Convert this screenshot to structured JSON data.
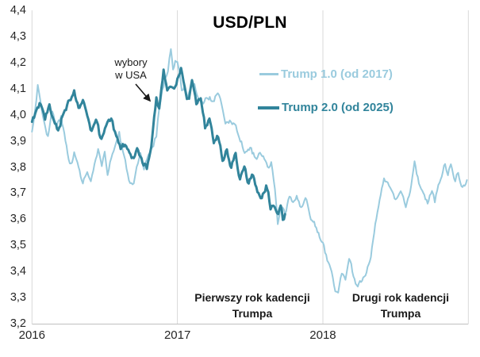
{
  "title": "USD/PLN",
  "colors": {
    "background": "#FFFFFF",
    "gridline": "#D9D9D9",
    "axis_line": "#BFBFBF",
    "text": "#262626",
    "arrow": "#1A1A1A",
    "trump1_line": "#9ACBDE",
    "trump2_line": "#31849B"
  },
  "annotations": {
    "election": {
      "line1": "wybory",
      "line2": "w USA"
    },
    "first_term": {
      "line1": "Pierwszy rok kadencji",
      "line2": "Trumpa"
    },
    "second_term": {
      "line1": "Drugi rok kadencji",
      "line2": "Trumpa"
    }
  },
  "chart_data": {
    "type": "line",
    "title": "USD/PLN",
    "grid": "vertical-only",
    "legend_position": "top-right-inside",
    "x_axis": {
      "min": 2016,
      "max": 2019,
      "tick_labels": [
        "2016",
        "2017",
        "2018"
      ],
      "tick_years": [
        2016,
        2017,
        2018
      ],
      "gridline_years": [
        2016,
        2017,
        2018,
        2019
      ]
    },
    "y_axis": {
      "min": 3.2,
      "max": 4.4,
      "step": 0.1,
      "tick_labels": [
        "3,2",
        "3,3",
        "3,4",
        "3,5",
        "3,6",
        "3,7",
        "3,8",
        "3,9",
        "4,0",
        "4,1",
        "4,2",
        "4,3",
        "4,4"
      ]
    },
    "series": [
      {
        "id": "trump-1",
        "name": "Trump 1.0 (od 2017)",
        "color": "#9ACBDE",
        "stroke_width": 2,
        "points": [
          [
            2016.0,
            3.93
          ],
          [
            2016.02,
            4.02
          ],
          [
            2016.04,
            4.12
          ],
          [
            2016.06,
            4.05
          ],
          [
            2016.085,
            3.98
          ],
          [
            2016.11,
            3.93
          ],
          [
            2016.14,
            4.01
          ],
          [
            2016.17,
            3.95
          ],
          [
            2016.2,
            3.99
          ],
          [
            2016.23,
            3.89
          ],
          [
            2016.26,
            3.81
          ],
          [
            2016.29,
            3.86
          ],
          [
            2016.32,
            3.79
          ],
          [
            2016.35,
            3.74
          ],
          [
            2016.38,
            3.78
          ],
          [
            2016.405,
            3.73
          ],
          [
            2016.43,
            3.8
          ],
          [
            2016.455,
            3.85
          ],
          [
            2016.48,
            3.78
          ],
          [
            2016.5,
            3.83
          ],
          [
            2016.52,
            3.77
          ],
          [
            2016.545,
            3.83
          ],
          [
            2016.57,
            3.88
          ],
          [
            2016.6,
            3.93
          ],
          [
            2016.625,
            3.85
          ],
          [
            2016.65,
            3.79
          ],
          [
            2016.675,
            3.74
          ],
          [
            2016.7,
            3.72
          ],
          [
            2016.72,
            3.77
          ],
          [
            2016.745,
            3.82
          ],
          [
            2016.77,
            3.77
          ],
          [
            2016.79,
            3.81
          ],
          [
            2016.81,
            3.85
          ],
          [
            2016.835,
            3.88
          ],
          [
            2016.855,
            3.92
          ],
          [
            2016.875,
            4.03
          ],
          [
            2016.895,
            4.09
          ],
          [
            2016.915,
            4.14
          ],
          [
            2016.935,
            4.18
          ],
          [
            2016.955,
            4.25
          ],
          [
            2016.97,
            4.19
          ],
          [
            2016.985,
            4.22
          ],
          [
            2017.0,
            4.2
          ],
          [
            2017.015,
            4.15
          ],
          [
            2017.03,
            4.1
          ],
          [
            2017.05,
            4.12
          ],
          [
            2017.07,
            4.06
          ],
          [
            2017.09,
            4.1
          ],
          [
            2017.11,
            4.12
          ],
          [
            2017.14,
            4.07
          ],
          [
            2017.17,
            4.05
          ],
          [
            2017.2,
            4.07
          ],
          [
            2017.23,
            4.06
          ],
          [
            2017.26,
            4.08
          ],
          [
            2017.295,
            4.07
          ],
          [
            2017.33,
            3.99
          ],
          [
            2017.36,
            4.0
          ],
          [
            2017.385,
            3.97
          ],
          [
            2017.41,
            3.93
          ],
          [
            2017.44,
            3.9
          ],
          [
            2017.47,
            3.86
          ],
          [
            2017.5,
            3.88
          ],
          [
            2017.53,
            3.84
          ],
          [
            2017.56,
            3.86
          ],
          [
            2017.59,
            3.83
          ],
          [
            2017.62,
            3.78
          ],
          [
            2017.645,
            3.8
          ],
          [
            2017.67,
            3.72
          ],
          [
            2017.69,
            3.59
          ],
          [
            2017.715,
            3.65
          ],
          [
            2017.74,
            3.62
          ],
          [
            2017.77,
            3.68
          ],
          [
            2017.795,
            3.65
          ],
          [
            2017.82,
            3.68
          ],
          [
            2017.85,
            3.64
          ],
          [
            2017.88,
            3.66
          ],
          [
            2017.91,
            3.62
          ],
          [
            2017.94,
            3.58
          ],
          [
            2017.97,
            3.54
          ],
          [
            2018.0,
            3.5
          ],
          [
            2018.03,
            3.44
          ],
          [
            2018.06,
            3.38
          ],
          [
            2018.085,
            3.33
          ],
          [
            2018.105,
            3.32
          ],
          [
            2018.13,
            3.4
          ],
          [
            2018.155,
            3.36
          ],
          [
            2018.18,
            3.42
          ],
          [
            2018.21,
            3.37
          ],
          [
            2018.24,
            3.34
          ],
          [
            2018.27,
            3.36
          ],
          [
            2018.3,
            3.41
          ],
          [
            2018.33,
            3.46
          ],
          [
            2018.36,
            3.6
          ],
          [
            2018.39,
            3.7
          ],
          [
            2018.42,
            3.76
          ],
          [
            2018.455,
            3.71
          ],
          [
            2018.5,
            3.65
          ],
          [
            2018.535,
            3.71
          ],
          [
            2018.57,
            3.64
          ],
          [
            2018.6,
            3.72
          ],
          [
            2018.63,
            3.81
          ],
          [
            2018.66,
            3.74
          ],
          [
            2018.69,
            3.7
          ],
          [
            2018.72,
            3.66
          ],
          [
            2018.75,
            3.72
          ],
          [
            2018.77,
            3.67
          ],
          [
            2018.81,
            3.77
          ],
          [
            2018.84,
            3.83
          ],
          [
            2018.86,
            3.78
          ],
          [
            2018.88,
            3.82
          ],
          [
            2018.91,
            3.77
          ],
          [
            2018.93,
            3.79
          ],
          [
            2018.96,
            3.74
          ],
          [
            2018.99,
            3.75
          ]
        ]
      },
      {
        "id": "trump-2",
        "name": "Trump 2.0 (od 2025)",
        "color": "#31849B",
        "stroke_width": 3,
        "points": [
          [
            2016.0,
            3.98
          ],
          [
            2016.03,
            4.01
          ],
          [
            2016.06,
            4.04
          ],
          [
            2016.09,
            3.98
          ],
          [
            2016.12,
            4.03
          ],
          [
            2016.15,
            3.96
          ],
          [
            2016.18,
            3.93
          ],
          [
            2016.21,
            4.0
          ],
          [
            2016.25,
            4.05
          ],
          [
            2016.29,
            4.1
          ],
          [
            2016.32,
            4.02
          ],
          [
            2016.35,
            4.06
          ],
          [
            2016.38,
            3.99
          ],
          [
            2016.41,
            3.93
          ],
          [
            2016.44,
            3.97
          ],
          [
            2016.47,
            3.9
          ],
          [
            2016.51,
            3.94
          ],
          [
            2016.545,
            3.97
          ],
          [
            2016.58,
            3.9
          ],
          [
            2016.61,
            3.86
          ],
          [
            2016.64,
            3.88
          ],
          [
            2016.67,
            3.86
          ],
          [
            2016.7,
            3.83
          ],
          [
            2016.73,
            3.86
          ],
          [
            2016.76,
            3.82
          ],
          [
            2016.79,
            3.8
          ],
          [
            2016.82,
            3.9
          ],
          [
            2016.84,
            4.02
          ],
          [
            2016.855,
            4.08
          ],
          [
            2016.875,
            4.03
          ],
          [
            2016.905,
            4.16
          ],
          [
            2016.93,
            4.07
          ],
          [
            2016.95,
            4.1
          ],
          [
            2016.97,
            4.08
          ],
          [
            2017.0,
            4.13
          ],
          [
            2017.025,
            4.17
          ],
          [
            2017.05,
            4.09
          ],
          [
            2017.08,
            4.05
          ],
          [
            2017.1,
            4.11
          ],
          [
            2017.13,
            4.02
          ],
          [
            2017.16,
            4.06
          ],
          [
            2017.19,
            3.95
          ],
          [
            2017.22,
            3.99
          ],
          [
            2017.25,
            3.9
          ],
          [
            2017.28,
            3.92
          ],
          [
            2017.31,
            3.84
          ],
          [
            2017.34,
            3.87
          ],
          [
            2017.37,
            3.8
          ],
          [
            2017.4,
            3.84
          ],
          [
            2017.43,
            3.76
          ],
          [
            2017.46,
            3.8
          ],
          [
            2017.49,
            3.73
          ],
          [
            2017.52,
            3.77
          ],
          [
            2017.55,
            3.71
          ],
          [
            2017.58,
            3.67
          ],
          [
            2017.61,
            3.72
          ],
          [
            2017.64,
            3.64
          ],
          [
            2017.66,
            3.66
          ],
          [
            2017.685,
            3.61
          ],
          [
            2017.71,
            3.64
          ],
          [
            2017.725,
            3.59
          ],
          [
            2017.74,
            3.62
          ]
        ]
      }
    ]
  }
}
